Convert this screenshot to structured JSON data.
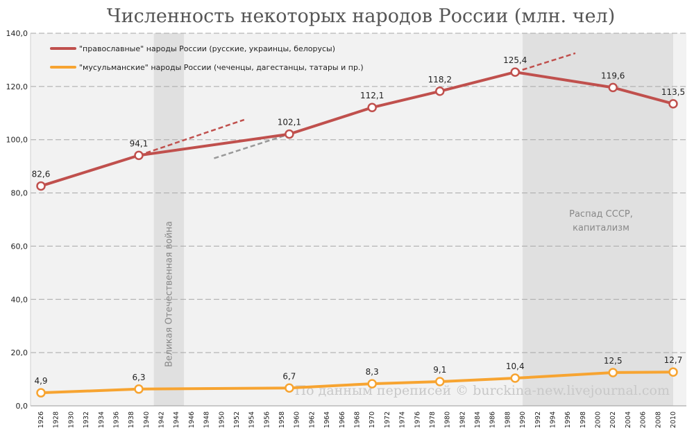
{
  "chart_data": {
    "type": "line",
    "title": "Численность некоторых народов России (млн. чел)",
    "ylim": [
      0,
      140
    ],
    "yticks": [
      "0,0",
      "20,0",
      "40,0",
      "60,0",
      "80,0",
      "100,0",
      "120,0",
      "140,0"
    ],
    "xlim": [
      1926,
      2010
    ],
    "xticks": [
      "1926",
      "1928",
      "1930",
      "1932",
      "1934",
      "1936",
      "1938",
      "1940",
      "1942",
      "1944",
      "1946",
      "1948",
      "1950",
      "1952",
      "1954",
      "1956",
      "1958",
      "1960",
      "1962",
      "1964",
      "1966",
      "1968",
      "1970",
      "1972",
      "1974",
      "1976",
      "1978",
      "1980",
      "1982",
      "1984",
      "1986",
      "1988",
      "1990",
      "1992",
      "1994",
      "1996",
      "1998",
      "2000",
      "2002",
      "2004",
      "2006",
      "2008",
      "2010"
    ],
    "grid": "horizontal dashed",
    "legend_position": "top-left",
    "series": [
      {
        "name": "\"православные\" народы России (русские, украинцы, белорусы)",
        "color": "#c0504d",
        "x": [
          1926,
          1939,
          1959,
          1970,
          1979,
          1989,
          2002,
          2010
        ],
        "values": [
          82.6,
          94.1,
          102.1,
          112.1,
          118.2,
          125.4,
          119.6,
          113.5
        ],
        "labels": [
          "82,6",
          "94,1",
          "102,1",
          "112,1",
          "118,2",
          "125,4",
          "119,6",
          "113,5"
        ]
      },
      {
        "name": "\"мусульманские\" народы России (чеченцы, дагестанцы, татары и пр.)",
        "color": "#f7a431",
        "x": [
          1926,
          1939,
          1959,
          1970,
          1979,
          1989,
          2002,
          2010
        ],
        "values": [
          4.9,
          6.3,
          6.7,
          8.3,
          9.1,
          10.4,
          12.5,
          12.7
        ],
        "labels": [
          "4,9",
          "6,3",
          "6,7",
          "8,3",
          "9,1",
          "10,4",
          "12,5",
          "12,7"
        ]
      }
    ],
    "trend_lines": [
      {
        "color": "#c0504d",
        "x": [
          1939,
          1953
        ],
        "values": [
          94.1,
          107.5
        ]
      },
      {
        "color": "#999999",
        "x": [
          1949,
          1959
        ],
        "values": [
          93.0,
          102.1
        ]
      },
      {
        "color": "#c0504d",
        "x": [
          1989,
          1997
        ],
        "values": [
          125.4,
          132.5
        ]
      }
    ],
    "shaded_regions": [
      {
        "x": [
          1941,
          1945
        ],
        "label": "Великая Отечественная война"
      },
      {
        "x": [
          1990,
          2010
        ],
        "label_lines": [
          "Распад СССР,",
          "капитализм"
        ]
      }
    ],
    "watermark": "По данным переписей © burckina-new.livejournal.com"
  }
}
